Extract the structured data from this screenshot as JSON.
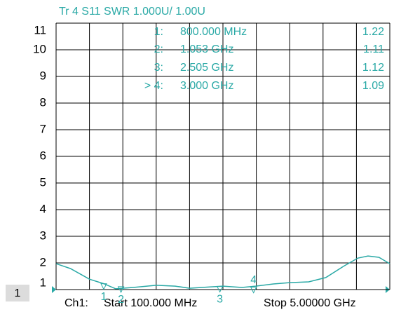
{
  "chart_data": {
    "type": "line",
    "title": "Tr 4  S11 SWR 1.000U/  1.00U",
    "x": [
      0.1,
      0.31,
      0.59,
      0.8,
      0.975,
      1.23,
      1.57,
      1.85,
      2.06,
      2.36,
      2.55,
      2.83,
      3.03,
      3.29,
      3.53,
      3.81,
      4.06,
      4.32,
      4.53,
      4.68,
      4.84,
      5.0
    ],
    "values": [
      1.97,
      1.79,
      1.39,
      1.22,
      1.03,
      1.08,
      1.16,
      1.13,
      1.05,
      1.1,
      1.13,
      1.08,
      1.13,
      1.21,
      1.26,
      1.29,
      1.45,
      1.87,
      2.18,
      2.26,
      2.21,
      1.97
    ],
    "color": "#2aa9a6",
    "xlim": [
      0.1,
      5.0
    ],
    "ylim": [
      1,
      11
    ],
    "yticks": [
      1,
      2,
      3,
      4,
      5,
      6,
      7,
      8,
      9,
      10,
      11
    ],
    "grid": true,
    "markers": [
      {
        "id": "1",
        "label": "1:",
        "x": 0.8,
        "x_label": "800.000 MHz",
        "value": 1.22
      },
      {
        "id": "2",
        "label": "2:",
        "x": 1.053,
        "x_label": "1.053 GHz",
        "value": 1.11
      },
      {
        "id": "3",
        "label": "3:",
        "x": 2.505,
        "x_label": "2.505 GHz",
        "value": 1.12
      },
      {
        "id": "4",
        "label": "> 4:",
        "x": 3.0,
        "x_label": "3.000 GHz",
        "value": 1.09
      }
    ],
    "channel_box": "1",
    "channel": "Ch1:",
    "start_label": "Start  100.000 MHz",
    "stop_label": "Stop  5.00000 GHz"
  }
}
